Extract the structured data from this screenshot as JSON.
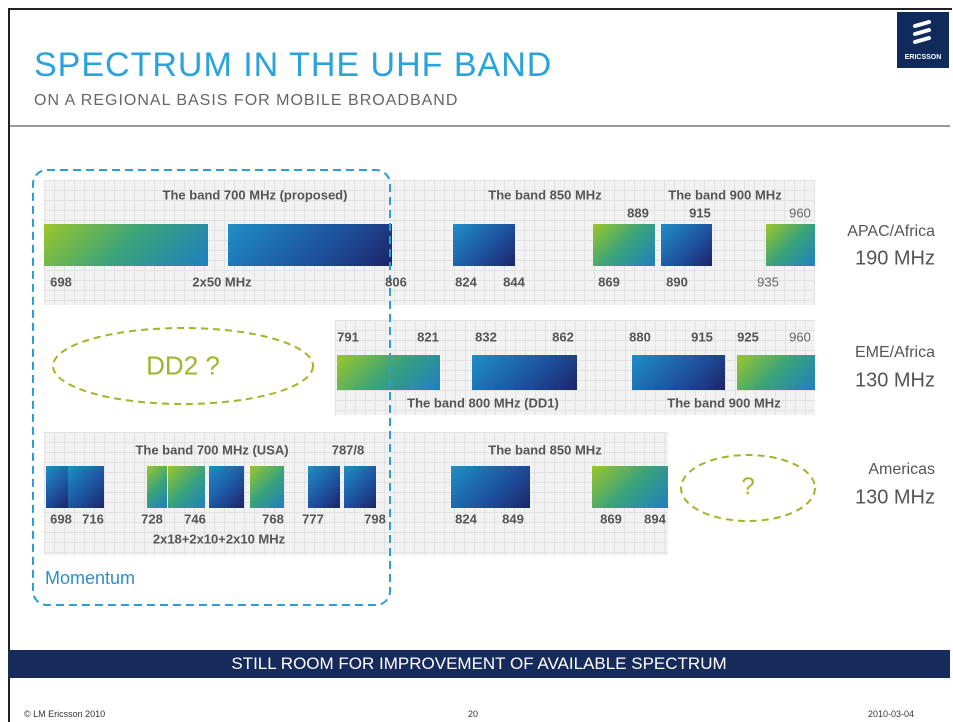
{
  "header": {
    "title": "SPECTRUM IN THE UHF BAND",
    "subtitle": "ON A REGIONAL BASIS FOR MOBILE BROADBAND"
  },
  "logo": "ERICSSON",
  "regions": [
    {
      "name": "APAC/Africa",
      "total": "190 MHz",
      "labels": [
        "The band 700 MHz (proposed)",
        "The band 850 MHz",
        "The band 900 MHz",
        "889",
        "915",
        "960",
        "698",
        "2x50 MHz",
        "806",
        "824",
        "844",
        "869",
        "890",
        "935"
      ]
    },
    {
      "name": "EME/Africa",
      "total": "130 MHz",
      "labels": [
        "791",
        "821",
        "832",
        "862",
        "880",
        "915",
        "925",
        "960",
        "The band 800 MHz (DD1)",
        "The band 900 MHz"
      ]
    },
    {
      "name": "Americas",
      "total": "130 MHz",
      "labels": [
        "The band 700 MHz (USA)",
        "787/8",
        "The band 850 MHz",
        "698",
        "716",
        "728",
        "746",
        "768",
        "777",
        "798",
        "824",
        "849",
        "869",
        "894",
        "2x18+2x10+2x10 MHz"
      ]
    }
  ],
  "notes": {
    "dd2": "DD2 ?",
    "americas_question": "?",
    "momentum": "Momentum"
  },
  "banner": "STILL ROOM FOR IMPROVEMENT OF AVAILABLE SPECTRUM",
  "footer": {
    "copyright": "© LM Ericsson 2010",
    "page": "20",
    "date": "2010-03-04"
  }
}
